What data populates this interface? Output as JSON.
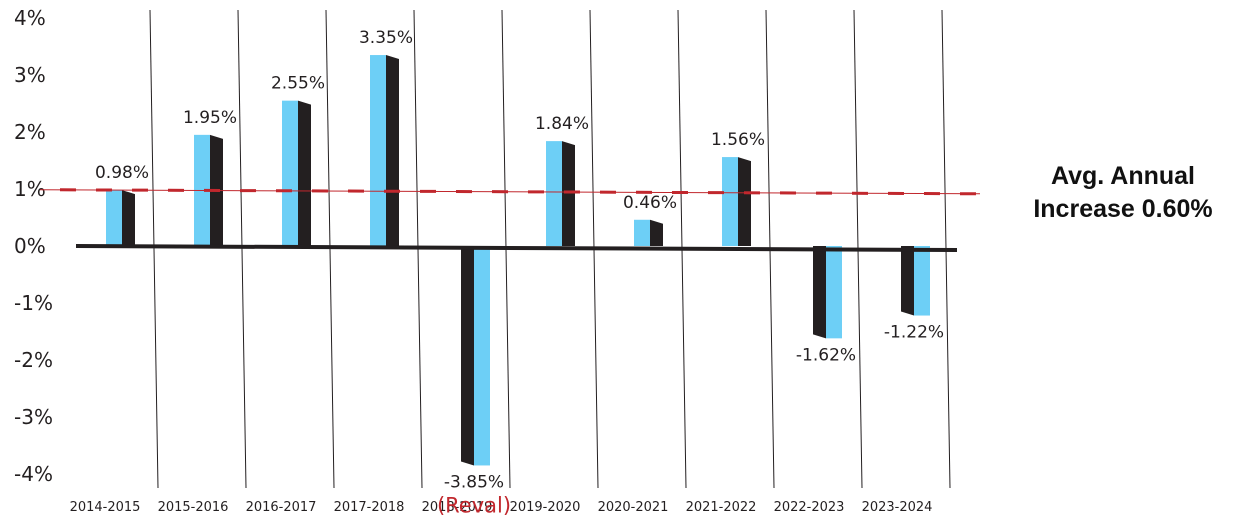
{
  "chart_data": {
    "type": "bar",
    "categories": [
      "2014-2015",
      "2015-2016",
      "2016-2017",
      "2017-2018",
      "2018-2019",
      "2019-2020",
      "2020-2021",
      "2021-2022",
      "2022-2023",
      "2023-2024"
    ],
    "values": [
      0.98,
      1.95,
      2.55,
      3.35,
      -3.85,
      1.84,
      0.46,
      1.56,
      -1.62,
      -1.22
    ],
    "value_labels": [
      "0.98%",
      "1.95%",
      "2.55%",
      "3.35%",
      "-3.85%",
      "1.84%",
      "0.46%",
      "1.56%",
      "-1.62%",
      "-1.22%"
    ],
    "bar_notes": {
      "4": "(Reval)"
    },
    "y_ticks": [
      4,
      3,
      2,
      1,
      0,
      -1,
      -2,
      -3,
      -4
    ],
    "y_tick_labels": [
      "4%",
      "3%",
      "2%",
      "1%",
      "0%",
      "-1%",
      "-2%",
      "-3%",
      "-4%"
    ],
    "ylim": [
      -4,
      4
    ],
    "reference_line": {
      "value": 0.6,
      "style": "dashed"
    },
    "annotation": {
      "line1": "Avg. Annual",
      "line2": "Increase 0.60%"
    },
    "title": "",
    "xlabel": "",
    "ylabel": "",
    "grid": "vertical separators only",
    "colors": {
      "bar_face": "#6DCFF6",
      "bar_side": "#231F20",
      "axis": "#231F20",
      "reference_line": "#C1272D",
      "note": "#C1272D",
      "text": "#231F20"
    }
  }
}
